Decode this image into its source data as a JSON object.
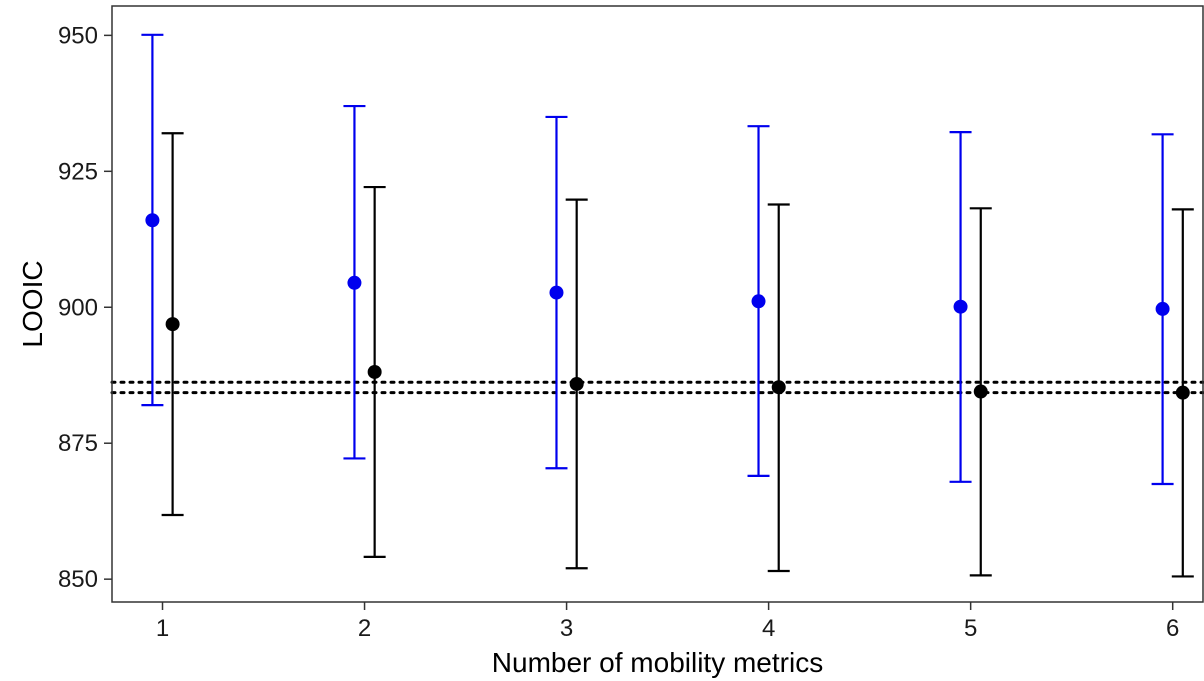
{
  "chart_data": {
    "type": "scatter",
    "xlabel": "Number of mobility metrics",
    "ylabel": "LOOIC",
    "x": [
      1,
      2,
      3,
      4,
      5,
      6
    ],
    "x_ticks": [
      "1",
      "2",
      "3",
      "4",
      "5",
      "6"
    ],
    "y_ticks": [
      850,
      875,
      900,
      925,
      950
    ],
    "xlim": [
      0.75,
      6.15
    ],
    "ylim": [
      845.8,
      955.4
    ],
    "grid": false,
    "error_bars": true,
    "series": [
      {
        "color": "#0000ee",
        "x_offset": -0.05,
        "values": [
          916.0,
          904.5,
          902.7,
          901.1,
          900.1,
          899.7
        ],
        "lower": [
          882.0,
          872.2,
          870.4,
          869.0,
          867.9,
          867.5
        ],
        "upper": [
          950.1,
          937.0,
          935.0,
          933.3,
          932.2,
          931.8
        ]
      },
      {
        "color": "#000000",
        "x_offset": 0.05,
        "values": [
          896.9,
          888.1,
          885.9,
          885.3,
          884.5,
          884.3
        ],
        "lower": [
          861.8,
          854.1,
          852.0,
          851.5,
          850.7,
          850.5
        ],
        "upper": [
          932.0,
          922.1,
          919.8,
          918.9,
          918.2,
          918.0
        ]
      }
    ],
    "reference_lines": [
      {
        "y": 886.2,
        "style": "dotted",
        "color": "#000000"
      },
      {
        "y": 884.3,
        "style": "dotted",
        "color": "#000000"
      }
    ]
  }
}
